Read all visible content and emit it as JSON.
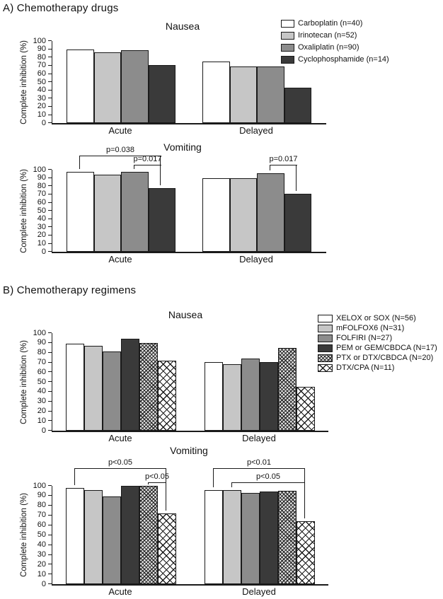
{
  "sections": {
    "a": {
      "label": "A) Chemotherapy drugs"
    },
    "b": {
      "label": "B) Chemotherapy regimens"
    }
  },
  "palette": {
    "white": "#ffffff",
    "light_gray": "#c6c6c6",
    "mid_gray": "#8c8c8c",
    "dark_gray": "#3a3a3a",
    "line": "#1a1a1a",
    "dense_cross": "fine dark crosshatch on light gray",
    "diamond": "open diamond lattice on white"
  },
  "chart_data": [
    {
      "id": "a-nausea",
      "type": "bar",
      "title": "Nausea",
      "ylabel": "Complete inhibition (%)",
      "ylim": [
        0,
        100
      ],
      "yticks": [
        0,
        10,
        20,
        30,
        40,
        50,
        60,
        70,
        80,
        90,
        100
      ],
      "categories": [
        "Acute",
        "Delayed"
      ],
      "grid": false,
      "legend_position": "top-right",
      "series": [
        {
          "name": "Carboplatin (n=40)",
          "pattern": "white",
          "values": [
            90,
            75
          ]
        },
        {
          "name": "Irinotecan (n=52)",
          "pattern": "light_gray",
          "values": [
            86,
            69
          ]
        },
        {
          "name": "Oxaliplatin (n=90)",
          "pattern": "mid_gray",
          "values": [
            89,
            69
          ]
        },
        {
          "name": "Cyclophosphamide (n=14)",
          "pattern": "dark_gray",
          "values": [
            71,
            43
          ]
        }
      ],
      "annotations": []
    },
    {
      "id": "a-vomiting",
      "type": "bar",
      "title": "Vomiting",
      "ylabel": "Complete inhibition (%)",
      "ylim": [
        0,
        100
      ],
      "yticks": [
        0,
        10,
        20,
        30,
        40,
        50,
        60,
        70,
        80,
        90,
        100
      ],
      "categories": [
        "Acute",
        "Delayed"
      ],
      "grid": false,
      "legend_position": "none",
      "series": [
        {
          "name": "Carboplatin (n=40)",
          "pattern": "white",
          "values": [
            97,
            90
          ]
        },
        {
          "name": "Irinotecan (n=52)",
          "pattern": "light_gray",
          "values": [
            94,
            90
          ]
        },
        {
          "name": "Oxaliplatin (n=90)",
          "pattern": "mid_gray",
          "values": [
            97,
            96
          ]
        },
        {
          "name": "Cyclophosphamide (n=14)",
          "pattern": "dark_gray",
          "values": [
            78,
            71
          ]
        }
      ],
      "annotations": [
        {
          "label": "p=0.038",
          "group": 0,
          "from_series": 0,
          "to_series": 3,
          "tier": 0
        },
        {
          "label": "p=0.017",
          "group": 0,
          "from_series": 2,
          "to_series": 3,
          "tier": 1
        },
        {
          "label": "p=0.017",
          "group": 1,
          "from_series": 2,
          "to_series": 3,
          "tier": 1
        }
      ]
    },
    {
      "id": "b-nausea",
      "type": "bar",
      "title": "Nausea",
      "ylabel": "Complete inhibition (%)",
      "ylim": [
        0,
        100
      ],
      "yticks": [
        0,
        10,
        20,
        30,
        40,
        50,
        60,
        70,
        80,
        90,
        100
      ],
      "categories": [
        "Acute",
        "Delayed"
      ],
      "grid": false,
      "legend_position": "top-right",
      "series": [
        {
          "name": "XELOX or SOX (N=56)",
          "pattern": "white",
          "values": [
            89,
            70
          ]
        },
        {
          "name": "mFOLFOX6 (N=31)",
          "pattern": "light_gray",
          "values": [
            87,
            68
          ]
        },
        {
          "name": "FOLFIRI (N=27)",
          "pattern": "mid_gray",
          "values": [
            81,
            74
          ]
        },
        {
          "name": "PEM or GEM/CBDCA (N=17)",
          "pattern": "dark_gray",
          "values": [
            94,
            70
          ]
        },
        {
          "name": "PTX or DTX/CBDCA (N=20)",
          "pattern": "dense_cross",
          "values": [
            90,
            85
          ]
        },
        {
          "name": "DTX/CPA (N=11)",
          "pattern": "diamond",
          "values": [
            72,
            45
          ]
        }
      ],
      "annotations": []
    },
    {
      "id": "b-vomiting",
      "type": "bar",
      "title": "Vomiting",
      "ylabel": "Complete inhibition (%)",
      "ylim": [
        0,
        100
      ],
      "yticks": [
        0,
        10,
        20,
        30,
        40,
        50,
        60,
        70,
        80,
        90,
        100
      ],
      "categories": [
        "Acute",
        "Delayed"
      ],
      "grid": false,
      "legend_position": "none",
      "series": [
        {
          "name": "XELOX or SOX (N=56)",
          "pattern": "white",
          "values": [
            98,
            96
          ]
        },
        {
          "name": "mFOLFOX6 (N=31)",
          "pattern": "light_gray",
          "values": [
            96,
            96
          ]
        },
        {
          "name": "FOLFIRI (N=27)",
          "pattern": "mid_gray",
          "values": [
            89,
            93
          ]
        },
        {
          "name": "PEM or GEM/CBDCA (N=17)",
          "pattern": "dark_gray",
          "values": [
            100,
            94
          ]
        },
        {
          "name": "PTX or DTX/CBDCA (N=20)",
          "pattern": "dense_cross",
          "values": [
            100,
            95
          ]
        },
        {
          "name": "DTX/CPA (N=11)",
          "pattern": "diamond",
          "values": [
            72,
            64
          ]
        }
      ],
      "annotations": [
        {
          "label": "p<0.05",
          "group": 0,
          "from_series": 0,
          "to_series": 5,
          "tier": 0
        },
        {
          "label": "p<0.05",
          "group": 0,
          "from_series": 4,
          "to_series": 5,
          "tier": 1
        },
        {
          "label": "p<0.01",
          "group": 1,
          "from_series": 0,
          "to_series": 5,
          "tier": 0
        },
        {
          "label": "p<0.05",
          "group": 1,
          "from_series": 1,
          "to_series": 5,
          "tier": 1
        }
      ]
    }
  ]
}
